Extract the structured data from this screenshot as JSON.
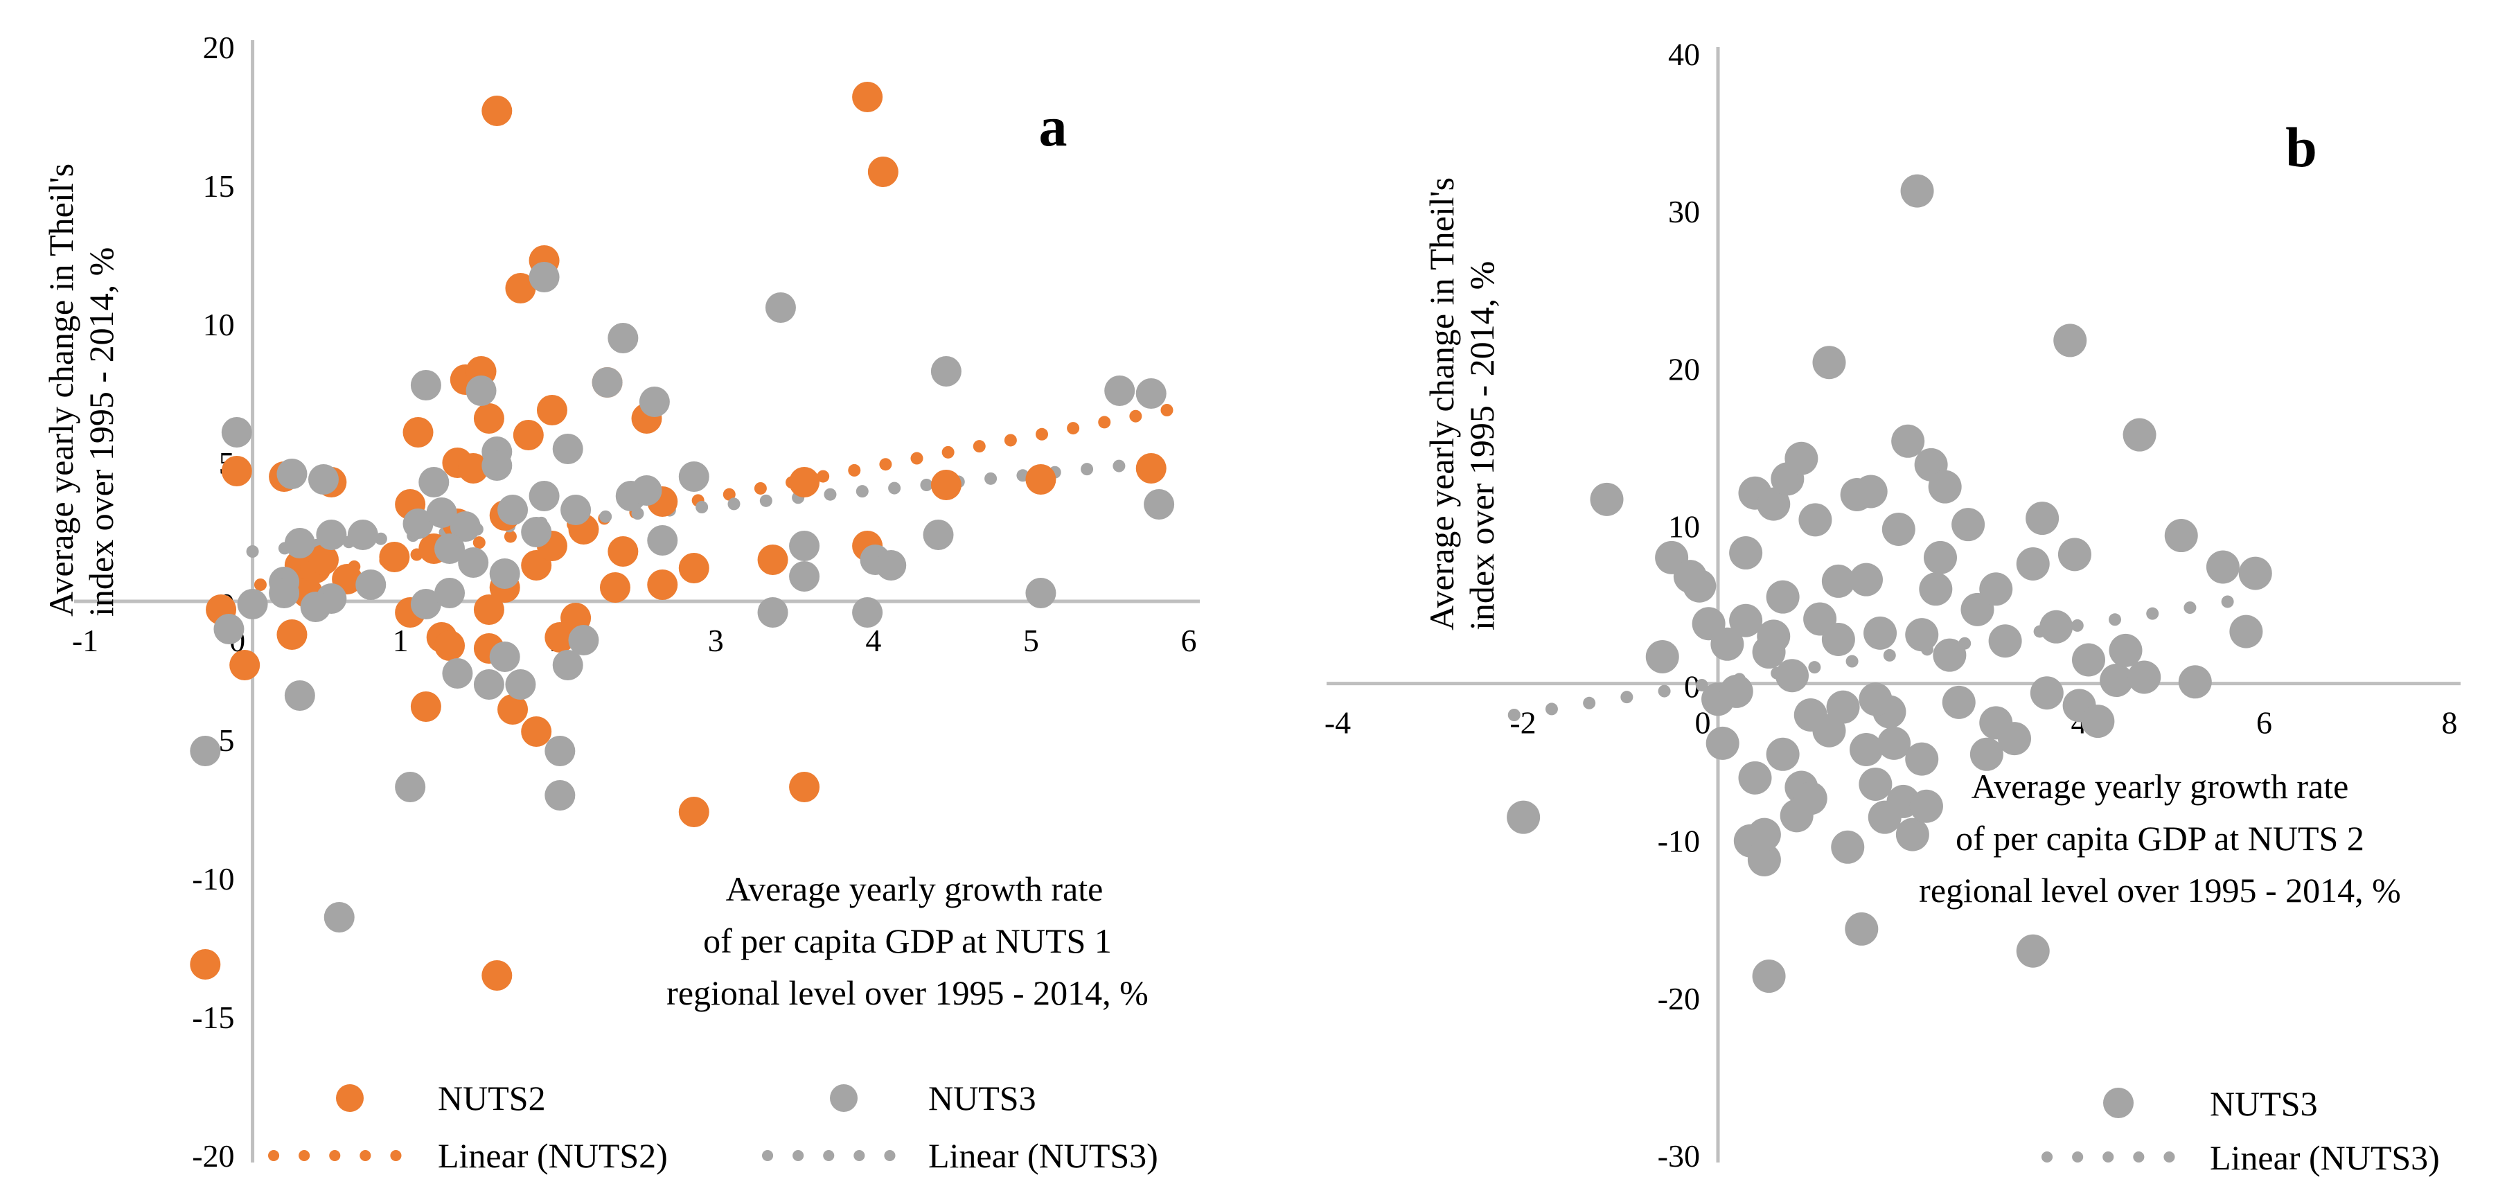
{
  "colors": {
    "nuts2": "#ED7D31",
    "nuts3": "#A5A5A5",
    "axis": "#BFBFBF"
  },
  "panel_a": {
    "letter": "a",
    "ylabel_lines": [
      "Average yearly change in Theil's",
      "index over 1995 -  2014, %"
    ],
    "xlabel_lines": [
      "Average yearly growth rate",
      "of per capita GDP at NUTS 1",
      "regional  level over 1995 - 2014, %"
    ],
    "legend": {
      "nuts2_marker": "NUTS2",
      "nuts3_marker": "NUTS3",
      "nuts2_trend": "Linear (NUTS2)",
      "nuts3_trend": "Linear (NUTS3)"
    }
  },
  "panel_b": {
    "letter": "b",
    "ylabel_lines": [
      "Average yearly change in Theil's",
      "index over 1995 - 2014, %"
    ],
    "xlabel_lines": [
      "Average yearly growth rate",
      "of per capita GDP at NUTS 2",
      "regional level over 1995 - 2014, %"
    ],
    "legend": {
      "nuts3_marker": "NUTS3",
      "nuts3_trend": "Linear (NUTS3)"
    }
  },
  "chart_data": [
    {
      "type": "scatter",
      "panel": "a",
      "title": "",
      "xlim": [
        -1,
        6
      ],
      "ylim": [
        -20,
        20
      ],
      "xticks": [
        -1,
        0,
        1,
        2,
        3,
        4,
        5,
        6
      ],
      "yticks": [
        -20,
        -15,
        -10,
        -5,
        0,
        5,
        10,
        15,
        20
      ],
      "grid": false,
      "legend_position": "bottom",
      "series": [
        {
          "name": "NUTS2",
          "points": [
            [
              -0.2,
              -0.3
            ],
            [
              -0.1,
              4.7
            ],
            [
              -0.05,
              -2.3
            ],
            [
              0.2,
              4.5
            ],
            [
              0.25,
              -1.2
            ],
            [
              0.3,
              1.3
            ],
            [
              0.35,
              0.3
            ],
            [
              0.4,
              1.2
            ],
            [
              0.45,
              1.5
            ],
            [
              0.5,
              4.3
            ],
            [
              1.0,
              3.5
            ],
            [
              1.0,
              -0.4
            ],
            [
              1.05,
              6.1
            ],
            [
              1.1,
              -3.8
            ],
            [
              1.15,
              1.9
            ],
            [
              1.2,
              -1.3
            ],
            [
              1.25,
              -1.6
            ],
            [
              1.3,
              2.8
            ],
            [
              1.3,
              5.0
            ],
            [
              1.35,
              8.0
            ],
            [
              1.4,
              4.8
            ],
            [
              1.45,
              8.3
            ],
            [
              1.5,
              6.6
            ],
            [
              1.5,
              -0.3
            ],
            [
              1.5,
              -1.7
            ],
            [
              1.55,
              17.7
            ],
            [
              1.6,
              3.1
            ],
            [
              1.65,
              -3.9
            ],
            [
              1.7,
              11.3
            ],
            [
              1.75,
              6.0
            ],
            [
              1.8,
              -4.7
            ],
            [
              1.8,
              1.3
            ],
            [
              1.9,
              2.0
            ],
            [
              1.9,
              6.9
            ],
            [
              1.85,
              12.3
            ],
            [
              1.95,
              -1.3
            ],
            [
              2.05,
              -0.6
            ],
            [
              2.1,
              2.6
            ],
            [
              2.25,
              7.9
            ],
            [
              2.3,
              0.5
            ],
            [
              2.35,
              1.8
            ],
            [
              2.5,
              6.6
            ],
            [
              2.6,
              3.6
            ],
            [
              2.6,
              0.6
            ],
            [
              2.8,
              1.2
            ],
            [
              2.8,
              -7.6
            ],
            [
              3.3,
              1.5
            ],
            [
              3.5,
              4.3
            ],
            [
              3.5,
              -6.7
            ],
            [
              3.9,
              18.2
            ],
            [
              3.9,
              2.0
            ],
            [
              4.0,
              15.5
            ],
            [
              4.4,
              4.2
            ],
            [
              5.0,
              4.4
            ],
            [
              5.7,
              4.8
            ],
            [
              1.55,
              -13.5
            ],
            [
              -0.3,
              -13.1
            ],
            [
              1.6,
              0.5
            ],
            [
              0.6,
              0.8
            ],
            [
              0.9,
              1.6
            ]
          ],
          "trend": {
            "x": [
              0.05,
              5.8
            ],
            "y": [
              0.6,
              6.9
            ]
          }
        },
        {
          "name": "NUTS3",
          "points": [
            [
              -0.3,
              -5.4
            ],
            [
              -0.15,
              -1.0
            ],
            [
              -0.1,
              6.1
            ],
            [
              0.0,
              -0.1
            ],
            [
              0.2,
              0.7
            ],
            [
              0.25,
              4.6
            ],
            [
              0.3,
              2.1
            ],
            [
              0.3,
              -3.4
            ],
            [
              0.45,
              4.4
            ],
            [
              0.5,
              2.4
            ],
            [
              0.5,
              0.1
            ],
            [
              0.55,
              -11.4
            ],
            [
              0.7,
              2.4
            ],
            [
              0.75,
              0.6
            ],
            [
              1.0,
              -6.7
            ],
            [
              1.05,
              2.8
            ],
            [
              1.1,
              7.8
            ],
            [
              1.1,
              -0.1
            ],
            [
              1.15,
              4.3
            ],
            [
              1.2,
              3.2
            ],
            [
              1.25,
              0.3
            ],
            [
              1.3,
              -2.6
            ],
            [
              1.35,
              2.7
            ],
            [
              1.45,
              7.6
            ],
            [
              1.5,
              -3.0
            ],
            [
              1.55,
              5.4
            ],
            [
              1.55,
              4.9
            ],
            [
              1.6,
              1.0
            ],
            [
              1.6,
              -2.0
            ],
            [
              1.65,
              3.3
            ],
            [
              1.7,
              -3.0
            ],
            [
              1.8,
              2.5
            ],
            [
              1.85,
              11.7
            ],
            [
              1.85,
              3.8
            ],
            [
              1.95,
              -5.4
            ],
            [
              1.95,
              -7.0
            ],
            [
              2.0,
              5.5
            ],
            [
              2.05,
              3.3
            ],
            [
              2.1,
              -1.4
            ],
            [
              2.25,
              7.9
            ],
            [
              2.35,
              9.5
            ],
            [
              2.4,
              3.8
            ],
            [
              2.5,
              4.0
            ],
            [
              2.55,
              7.2
            ],
            [
              2.6,
              2.2
            ],
            [
              2.8,
              4.5
            ],
            [
              3.3,
              -0.4
            ],
            [
              3.35,
              10.6
            ],
            [
              3.5,
              2.0
            ],
            [
              3.5,
              0.9
            ],
            [
              3.9,
              -0.4
            ],
            [
              3.95,
              1.5
            ],
            [
              4.05,
              1.3
            ],
            [
              4.35,
              2.4
            ],
            [
              4.4,
              8.3
            ],
            [
              5.0,
              0.3
            ],
            [
              5.5,
              7.6
            ],
            [
              5.7,
              7.5
            ],
            [
              5.75,
              3.5
            ],
            [
              1.4,
              1.4
            ],
            [
              1.25,
              1.9
            ],
            [
              0.2,
              0.3
            ],
            [
              0.4,
              -0.2
            ],
            [
              2.0,
              -2.3
            ]
          ],
          "trend": {
            "x": [
              0.0,
              5.7
            ],
            "y": [
              1.8,
              5.0
            ]
          }
        }
      ],
      "xlabel": "Average yearly growth rate of per capita GDP at NUTS 1 regional  level over 1995 - 2014, %",
      "ylabel": "Average yearly change in Theil's index over 1995 -  2014, %"
    },
    {
      "type": "scatter",
      "panel": "b",
      "title": "",
      "xlim": [
        -4,
        8
      ],
      "ylim": [
        -30,
        40
      ],
      "xticks": [
        -4,
        -2,
        0,
        2,
        4,
        6,
        8
      ],
      "yticks": [
        -30,
        -20,
        -10,
        0,
        10,
        20,
        30,
        40
      ],
      "grid": false,
      "legend_position": "bottom-right",
      "series": [
        {
          "name": "NUTS3",
          "points": [
            [
              -2.1,
              -8.5
            ],
            [
              -1.2,
              11.7
            ],
            [
              -0.6,
              1.7
            ],
            [
              -0.5,
              8.0
            ],
            [
              -0.3,
              6.8
            ],
            [
              -0.2,
              6.2
            ],
            [
              -0.1,
              3.8
            ],
            [
              0.0,
              -1.0
            ],
            [
              0.05,
              -3.8
            ],
            [
              0.1,
              2.5
            ],
            [
              0.2,
              -0.5
            ],
            [
              0.3,
              8.3
            ],
            [
              0.35,
              -10.0
            ],
            [
              0.4,
              12.1
            ],
            [
              0.5,
              -11.2
            ],
            [
              0.5,
              -9.6
            ],
            [
              0.55,
              -18.6
            ],
            [
              0.55,
              2.0
            ],
            [
              0.6,
              11.4
            ],
            [
              0.7,
              5.5
            ],
            [
              0.75,
              13.0
            ],
            [
              0.85,
              -8.4
            ],
            [
              0.9,
              14.3
            ],
            [
              0.9,
              -6.6
            ],
            [
              1.0,
              -7.3
            ],
            [
              1.05,
              10.4
            ],
            [
              1.1,
              4.1
            ],
            [
              1.2,
              20.4
            ],
            [
              1.3,
              2.8
            ],
            [
              1.35,
              -1.5
            ],
            [
              1.4,
              -10.4
            ],
            [
              1.5,
              12.0
            ],
            [
              1.55,
              -15.6
            ],
            [
              1.6,
              6.6
            ],
            [
              1.65,
              12.2
            ],
            [
              1.7,
              -6.4
            ],
            [
              1.75,
              3.2
            ],
            [
              1.8,
              -8.5
            ],
            [
              1.85,
              -1.8
            ],
            [
              1.95,
              9.8
            ],
            [
              2.0,
              -7.5
            ],
            [
              2.05,
              15.4
            ],
            [
              2.1,
              -9.6
            ],
            [
              2.15,
              31.3
            ],
            [
              2.2,
              3.1
            ],
            [
              2.25,
              -7.8
            ],
            [
              2.3,
              13.9
            ],
            [
              2.35,
              6.0
            ],
            [
              2.4,
              8.0
            ],
            [
              2.45,
              12.5
            ],
            [
              2.6,
              -1.2
            ],
            [
              2.7,
              10.1
            ],
            [
              2.8,
              4.7
            ],
            [
              3.0,
              -2.5
            ],
            [
              3.1,
              2.7
            ],
            [
              3.4,
              7.6
            ],
            [
              3.4,
              -17.0
            ],
            [
              3.5,
              10.5
            ],
            [
              3.55,
              -0.6
            ],
            [
              3.65,
              3.6
            ],
            [
              3.8,
              21.8
            ],
            [
              3.85,
              8.2
            ],
            [
              3.9,
              -1.4
            ],
            [
              4.0,
              1.5
            ],
            [
              4.1,
              -2.4
            ],
            [
              4.3,
              0.2
            ],
            [
              4.4,
              2.1
            ],
            [
              4.6,
              0.4
            ],
            [
              4.55,
              15.8
            ],
            [
              5.0,
              9.4
            ],
            [
              5.15,
              0.1
            ],
            [
              5.45,
              7.4
            ],
            [
              5.7,
              3.3
            ],
            [
              5.8,
              7.0
            ],
            [
              0.3,
              4.0
            ],
            [
              0.8,
              0.5
            ],
            [
              1.2,
              -3.0
            ],
            [
              1.6,
              -4.2
            ],
            [
              2.5,
              1.8
            ],
            [
              3.2,
              -3.5
            ],
            [
              0.7,
              -4.5
            ],
            [
              1.0,
              -2.0
            ],
            [
              1.9,
              -3.8
            ],
            [
              2.9,
              -4.5
            ],
            [
              0.4,
              -6.0
            ],
            [
              1.3,
              6.5
            ],
            [
              2.2,
              -4.8
            ],
            [
              3.0,
              6.0
            ],
            [
              0.6,
              3.0
            ],
            [
              1.7,
              -1.0
            ]
          ],
          "trend": {
            "x": [
              -2.2,
              5.5
            ],
            "y": [
              -2.0,
              5.2
            ]
          }
        }
      ],
      "xlabel": "Average yearly growth rate of per capita GDP at NUTS 2 regional level over 1995 - 2014, %",
      "ylabel": "Average yearly change in Theil's index over 1995 - 2014, %"
    }
  ]
}
